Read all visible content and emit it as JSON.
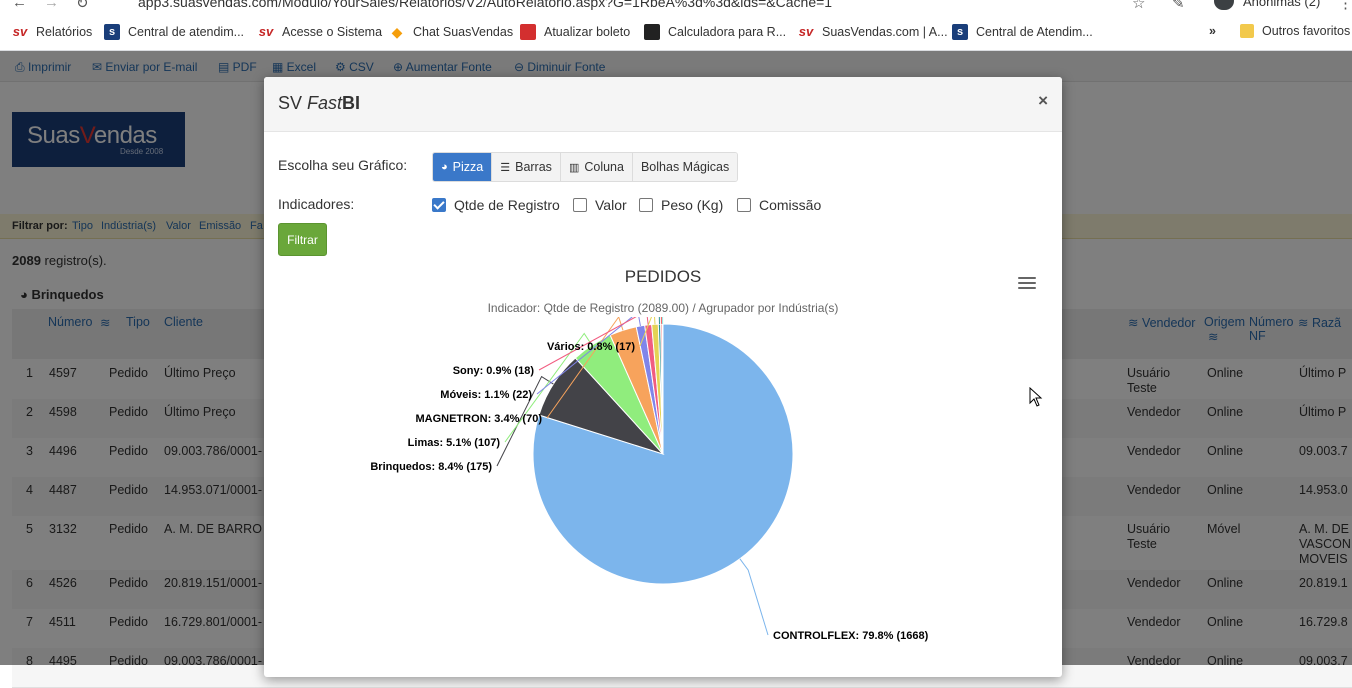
{
  "browser": {
    "url": "app3.suasvendas.com/Modulo/YourSales/Relatorios/V2/AutoRelatorio.aspx?G=1RbeA%3d%3d&ids=&Cache=1",
    "profile": "Anônimas (2)",
    "bookmarks": [
      {
        "label": "Relatórios",
        "icon": "sv-icon"
      },
      {
        "label": "Central de atendim...",
        "icon": "sv-box-icon"
      },
      {
        "label": "Acesse o Sistema",
        "icon": "sv-icon"
      },
      {
        "label": "Chat SuasVendas",
        "icon": "chat-icon"
      },
      {
        "label": "Atualizar boleto",
        "icon": "red-circle-icon"
      },
      {
        "label": "Calculadora para R...",
        "icon": "globe-icon"
      },
      {
        "label": "SuasVendas.com | A...",
        "icon": "sv-icon"
      },
      {
        "label": "Central de Atendim...",
        "icon": "sv-box-icon"
      }
    ],
    "overflow": "»",
    "other_favorites": "Outros favoritos"
  },
  "toolbar": {
    "items": [
      "Imprimir",
      "Enviar por E-mail",
      "PDF",
      "Excel",
      "CSV",
      "Aumentar Fonte",
      "Diminuir Fonte"
    ]
  },
  "logo": {
    "brand_a": "Suas",
    "brand_v": "V",
    "brand_b": "endas",
    "tagline": "Desde 2008"
  },
  "filterbar": {
    "label": "Filtrar por:",
    "items": [
      "Tipo",
      "Indústria(s)",
      "Valor",
      "Emissão",
      "Fa"
    ]
  },
  "records": {
    "count": "2089",
    "suffix": " registro(s)."
  },
  "group": {
    "name": "Brinquedos"
  },
  "table": {
    "headers": {
      "numero": "Número",
      "tipo": "Tipo",
      "cliente": "Cliente",
      "vendedor": "Vendedor",
      "origem": "Origem",
      "numero_nf_1": "Número",
      "numero_nf_2": "NF",
      "razao": "Razã"
    },
    "rows": [
      {
        "idx": "1",
        "numero": "4597",
        "tipo": "Pedido",
        "cliente": "Último Preço",
        "vendedor": "Usuário",
        "vendedor2": "Teste",
        "origem": "Online",
        "razao": "Último P",
        "razao2": "",
        "razao3": ""
      },
      {
        "idx": "2",
        "numero": "4598",
        "tipo": "Pedido",
        "cliente": "Último Preço",
        "vendedor": "Vendedor",
        "vendedor2": "",
        "origem": "Online",
        "razao": "Último P",
        "razao2": "",
        "razao3": ""
      },
      {
        "idx": "3",
        "numero": "4496",
        "tipo": "Pedido",
        "cliente": "09.003.786/0001-",
        "vendedor": "Vendedor",
        "vendedor2": "",
        "origem": "Online",
        "razao": "09.003.7",
        "razao2": "",
        "razao3": ""
      },
      {
        "idx": "4",
        "numero": "4487",
        "tipo": "Pedido",
        "cliente": "14.953.071/0001-",
        "vendedor": "Vendedor",
        "vendedor2": "",
        "origem": "Online",
        "razao": "14.953.0",
        "razao2": "",
        "razao3": ""
      },
      {
        "idx": "5",
        "numero": "3132",
        "tipo": "Pedido",
        "cliente": "A. M. DE BARRO",
        "vendedor": "Usuário",
        "vendedor2": "Teste",
        "origem": "Móvel",
        "razao": "A. M. DE",
        "razao2": "VASCON",
        "razao3": "MOVEIS"
      },
      {
        "idx": "6",
        "numero": "4526",
        "tipo": "Pedido",
        "cliente": "20.819.151/0001-",
        "vendedor": "Vendedor",
        "vendedor2": "",
        "origem": "Online",
        "razao": "20.819.1",
        "razao2": "",
        "razao3": ""
      },
      {
        "idx": "7",
        "numero": "4511",
        "tipo": "Pedido",
        "cliente": "16.729.801/0001-",
        "vendedor": "Vendedor",
        "vendedor2": "",
        "origem": "Online",
        "razao": "16.729.8",
        "razao2": "",
        "razao3": ""
      },
      {
        "idx": "8",
        "numero": "4495",
        "tipo": "Pedido",
        "cliente": "09.003.786/0001-",
        "vendedor": "Vendedor",
        "vendedor2": "",
        "origem": "Online",
        "razao": "09.003.7",
        "razao2": "",
        "razao3": ""
      }
    ]
  },
  "modal": {
    "title_prefix": "SV ",
    "title_italic": "Fast",
    "title_bold": "BI",
    "close": "×",
    "chart_label": "Escolha seu Gráfico:",
    "chart_types": [
      {
        "label": "Pizza",
        "icon": "pie-icon",
        "active": true
      },
      {
        "label": "Barras",
        "icon": "bars-icon",
        "active": false
      },
      {
        "label": "Coluna",
        "icon": "column-icon",
        "active": false
      },
      {
        "label": "Bolhas Mágicas",
        "icon": "",
        "active": false
      }
    ],
    "indicators_label": "Indicadores:",
    "indicators": [
      {
        "label": "Qtde de Registro",
        "checked": true
      },
      {
        "label": "Valor",
        "checked": false
      },
      {
        "label": "Peso (Kg)",
        "checked": false
      },
      {
        "label": "Comissão",
        "checked": false
      }
    ],
    "filter_button": "Filtrar"
  },
  "chart_data": {
    "type": "pie",
    "title": "PEDIDOS",
    "subtitle": "Indicador: Qtde de Registro (2089.00) / Agrupador por Indústria(s)",
    "slices": [
      {
        "name": "CONTROLFLEX",
        "percent": 79.8,
        "value": 1668,
        "label": "CONTROLFLEX: 79.8% (1668)",
        "color": "#7cb5ec"
      },
      {
        "name": "Brinquedos",
        "percent": 8.4,
        "value": 175,
        "label": "Brinquedos: 8.4% (175)",
        "color": "#434348"
      },
      {
        "name": "Limas",
        "percent": 5.1,
        "value": 107,
        "label": "Limas: 5.1% (107)",
        "color": "#90ed7d"
      },
      {
        "name": "MAGNETRON",
        "percent": 3.4,
        "value": 70,
        "label": "MAGNETRON: 3.4% (70)",
        "color": "#f7a35c"
      },
      {
        "name": "Móveis",
        "percent": 1.1,
        "value": 22,
        "label": "Móveis: 1.1% (22)",
        "color": "#8085e9"
      },
      {
        "name": "Sony",
        "percent": 0.9,
        "value": 18,
        "label": "Sony: 0.9% (18)",
        "color": "#f15c80"
      },
      {
        "name": "Vários",
        "percent": 0.8,
        "value": 17,
        "label": "Vários: 0.8% (17)",
        "color": "#e4d354"
      },
      {
        "name": "",
        "percent": 0.3,
        "value": 6,
        "label": "",
        "color": "#2b908f"
      },
      {
        "name": "",
        "percent": 0.2,
        "value": 4,
        "label": "",
        "color": "#f45b5b"
      },
      {
        "name": "",
        "percent": 0.1,
        "value": 2,
        "label": "",
        "color": "#91e8e1"
      }
    ]
  }
}
